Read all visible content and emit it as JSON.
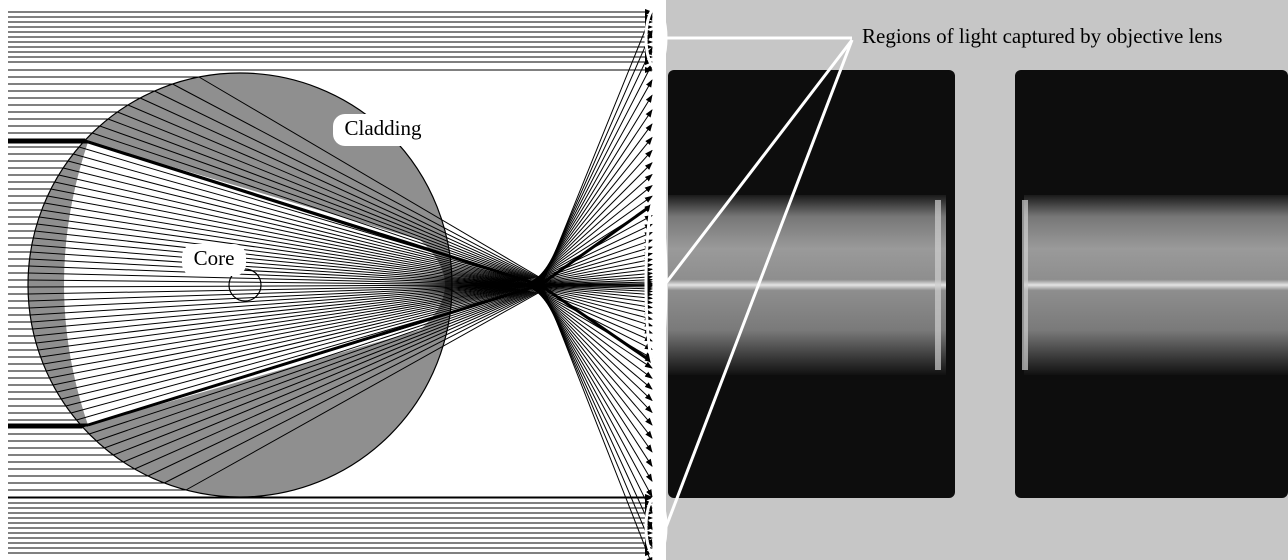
{
  "labels": {
    "cladding": "Cladding",
    "core": "Core",
    "regions": "Regions of light captured by objective lens"
  }
}
